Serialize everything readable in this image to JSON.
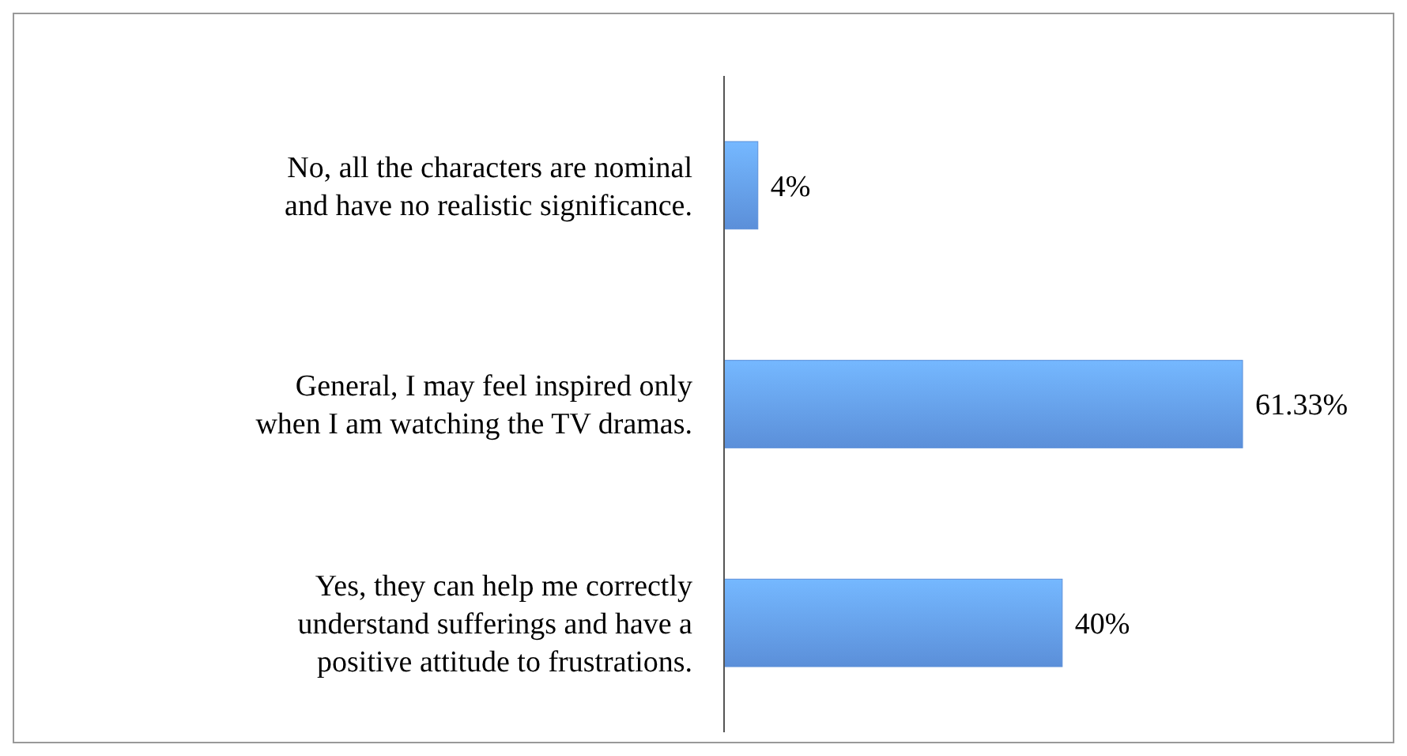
{
  "chart_data": {
    "type": "bar",
    "orientation": "horizontal",
    "categories": [
      "No, all the characters are nominal and have no realistic significance.",
      "General, I may feel inspired only when I am watching the TV dramas.",
      "Yes, they can help me correctly understand sufferings and have a positive attitude to frustrations."
    ],
    "values": [
      4,
      61.33,
      40
    ],
    "value_labels": [
      "4%",
      "61.33%",
      "40%"
    ],
    "color": "#5b8fd9"
  }
}
